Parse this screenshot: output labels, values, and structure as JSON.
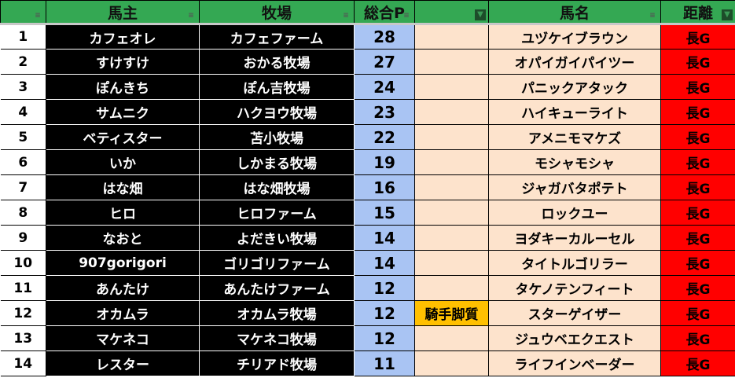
{
  "headers": [
    "",
    "馬主",
    "牧場",
    "総合P",
    "",
    "馬名",
    "距離"
  ],
  "colors": {
    "header": "#34a853",
    "points": "#a9c4f3",
    "peach": "#fde3cc",
    "tag": "#ffc000",
    "distance": "#ff0000"
  },
  "rows": [
    [
      "1",
      "カフェオレ",
      "カフェファーム",
      "28",
      "",
      "ユヅケイブラウン",
      "長G"
    ],
    [
      "2",
      "すけすけ",
      "おかる牧場",
      "27",
      "",
      "オパイガイパイツー",
      "長G"
    ],
    [
      "3",
      "ぽんきち",
      "ぽん吉牧場",
      "24",
      "",
      "パニックアタック",
      "長G"
    ],
    [
      "4",
      "サムニク",
      "ハクヨウ牧場",
      "23",
      "",
      "ハイキューライト",
      "長G"
    ],
    [
      "5",
      "ベティスター",
      "苫小牧場",
      "22",
      "",
      "アメニモマケズ",
      "長G"
    ],
    [
      "6",
      "いか",
      "しかまる牧場",
      "19",
      "",
      "モシャモシャ",
      "長G"
    ],
    [
      "7",
      "はな畑",
      "はな畑牧場",
      "16",
      "",
      "ジャガバタポテト",
      "長G"
    ],
    [
      "8",
      "ヒロ",
      "ヒロファーム",
      "15",
      "",
      "ロックユー",
      "長G"
    ],
    [
      "9",
      "なおと",
      "よだきい牧場",
      "14",
      "",
      "ヨダキーカルーセル",
      "長G"
    ],
    [
      "10",
      "907gorigori",
      "ゴリゴリファーム",
      "14",
      "",
      "タイトルゴリラー",
      "長G"
    ],
    [
      "11",
      "あんたけ",
      "あんたけファーム",
      "12",
      "",
      "タケノテンフィート",
      "長G"
    ],
    [
      "12",
      "オカムラ",
      "オカムラ牧場",
      "12",
      "騎手脚質",
      "スターゲイザー",
      "長G"
    ],
    [
      "13",
      "マケネコ",
      "マケネコ牧場",
      "12",
      "",
      "ジュウベエクエスト",
      "長G"
    ],
    [
      "14",
      "レスター",
      "チリアド牧場",
      "11",
      "",
      "ライフインベーダー",
      "長G"
    ]
  ]
}
